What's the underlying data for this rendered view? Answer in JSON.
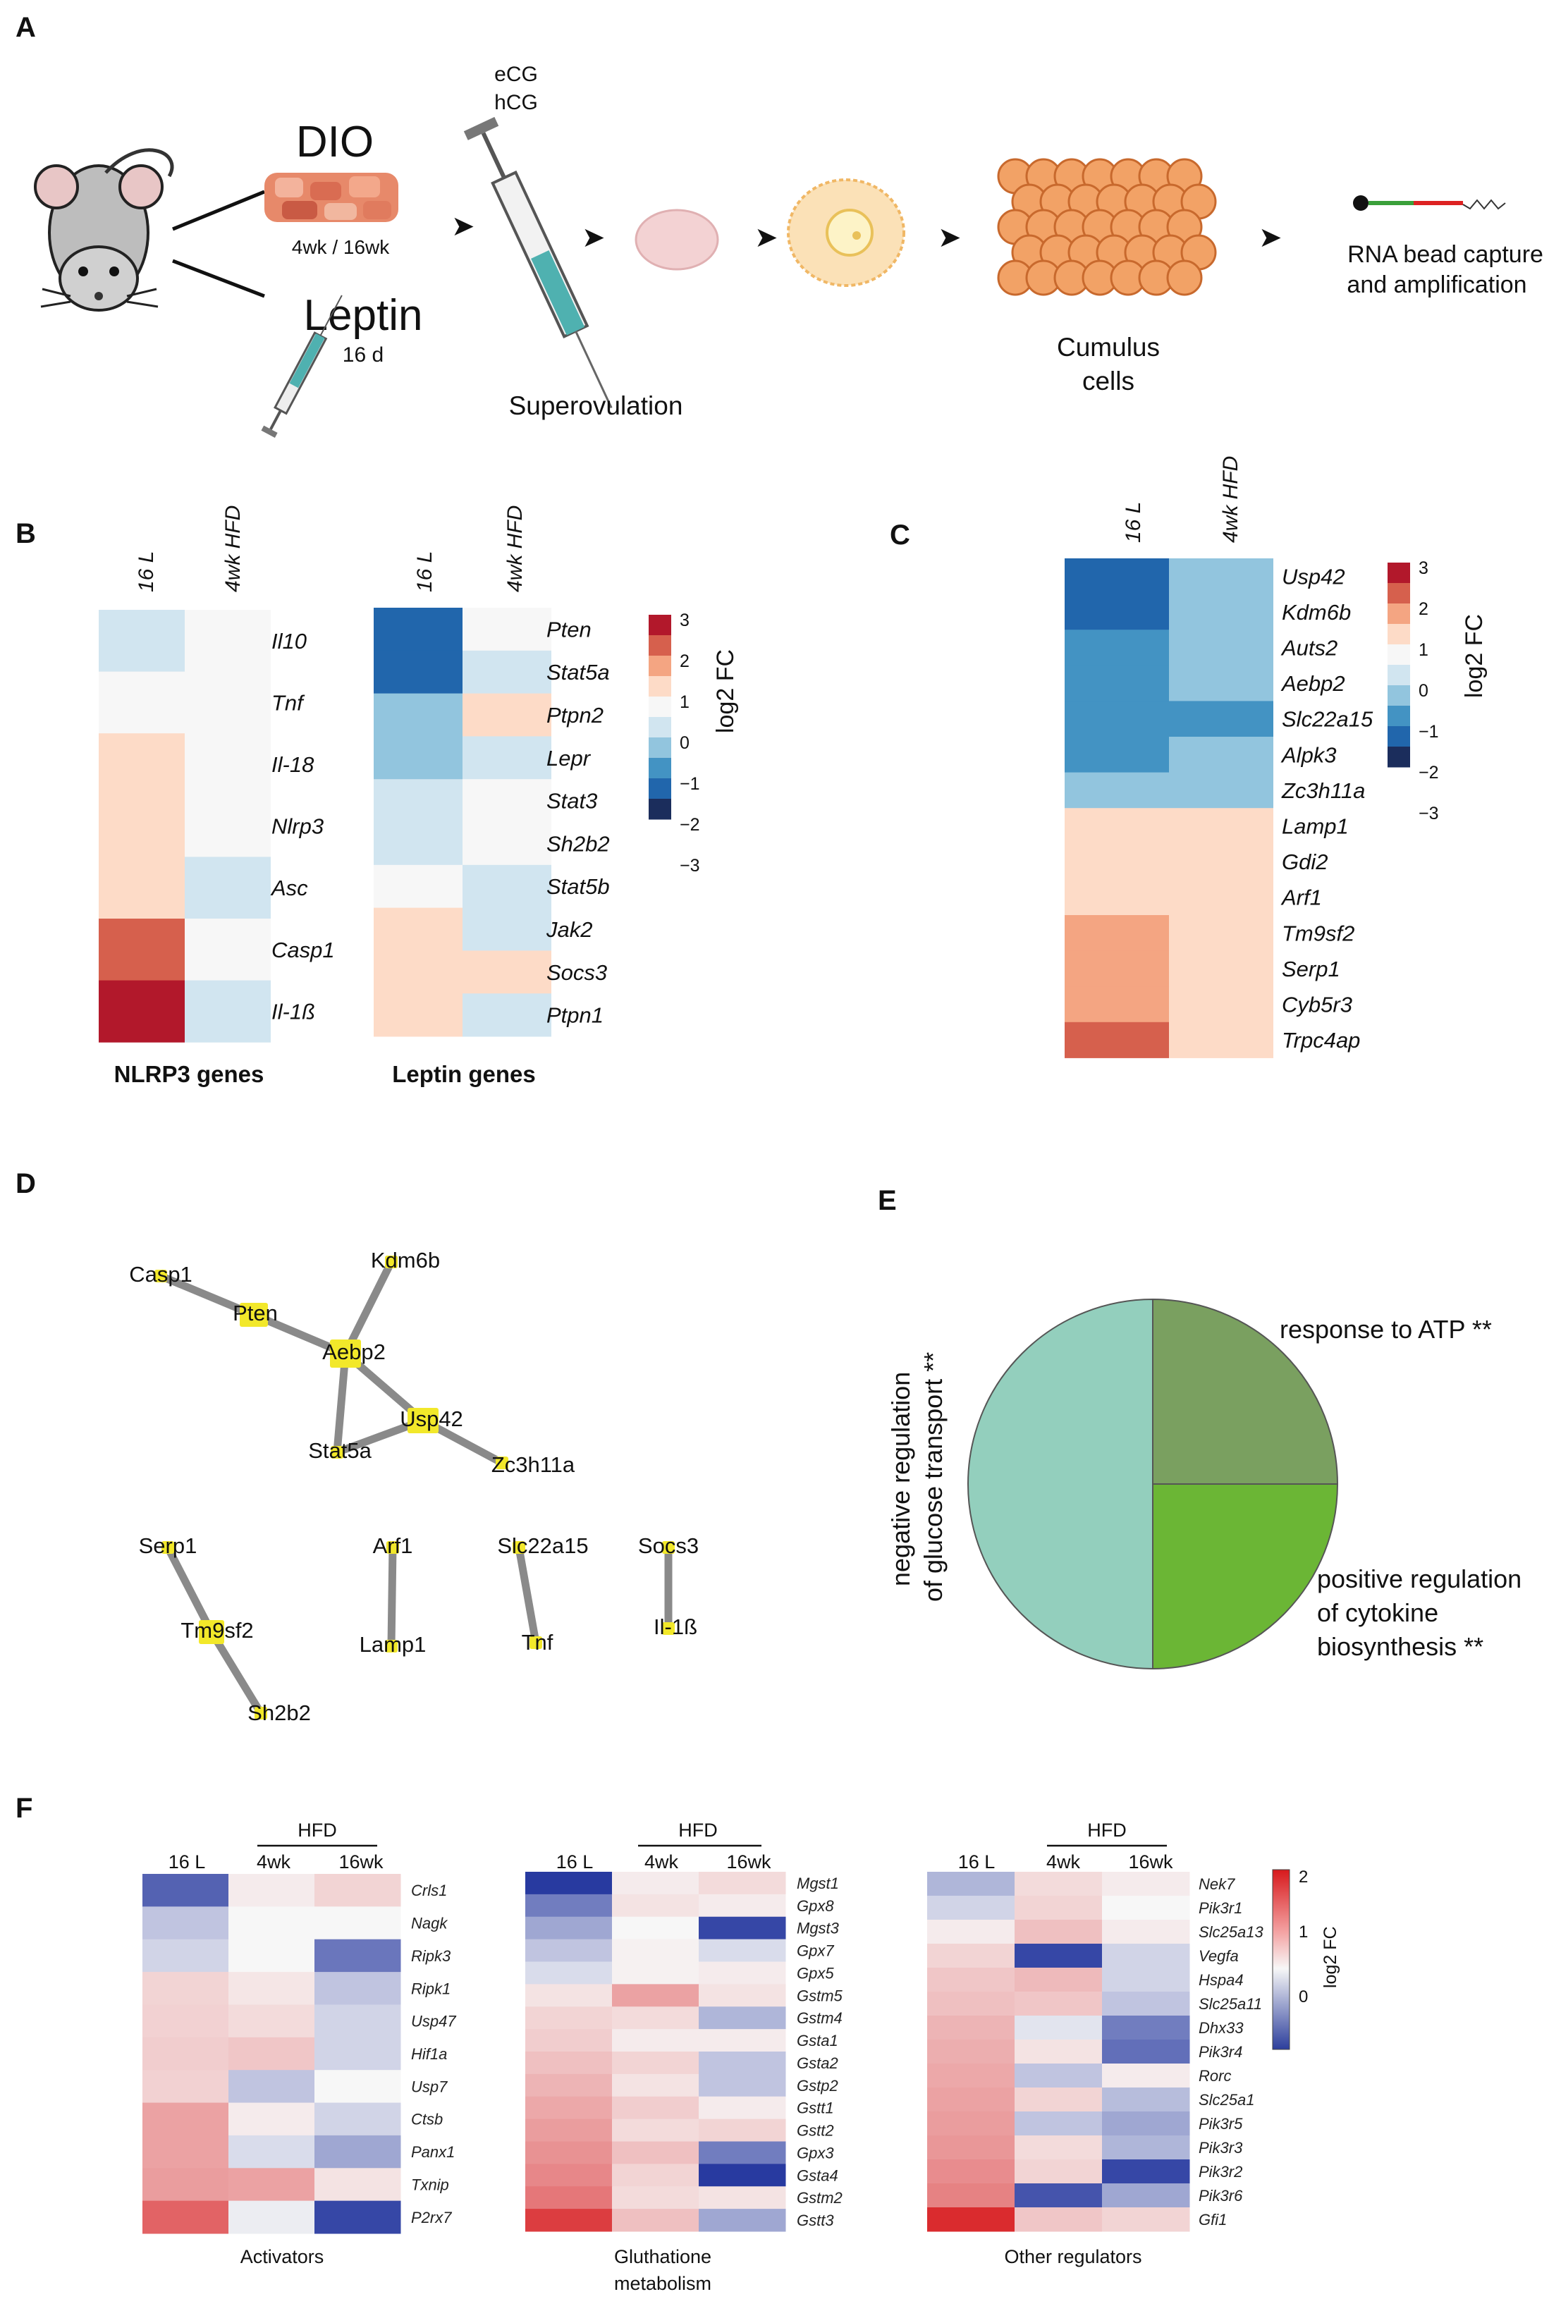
{
  "panels": {
    "A": "A",
    "B": "B",
    "C": "C",
    "D": "D",
    "E": "E",
    "F": "F"
  },
  "schematic": {
    "dio": "DIO",
    "dio_time": "4wk / 16wk",
    "leptin": "Leptin",
    "leptin_time": "16 d",
    "hormone1": "eCG",
    "hormone2": "hCG",
    "superovulation": "Superovulation",
    "cumulus1": "Cumulus",
    "cumulus2": "cells",
    "rna1": "RNA bead capture",
    "rna2": "and amplification"
  },
  "colors": {
    "c-3": "#1b2d5c",
    "c-2": "#2166ac",
    "c-1.5": "#4393c3",
    "c-1": "#92c5de",
    "c-0.5": "#d1e5f0",
    "c0": "#f7f7f7",
    "c0.5": "#fddbc7",
    "c1": "#f4a582",
    "c1.5": "#d6604d",
    "c2": "#b2182b"
  },
  "panelB": {
    "nlrp3": {
      "title": "NLRP3 genes",
      "columns": [
        "16 L",
        "4wk HFD"
      ],
      "rows": [
        {
          "gene": "Il10",
          "vals": [
            "c-0.5",
            "c0"
          ]
        },
        {
          "gene": "Tnf",
          "vals": [
            "c0",
            "c0"
          ]
        },
        {
          "gene": "Il-18",
          "vals": [
            "c0.5",
            "c0"
          ]
        },
        {
          "gene": "Nlrp3",
          "vals": [
            "c0.5",
            "c0"
          ]
        },
        {
          "gene": "Asc",
          "vals": [
            "c0.5",
            "c-0.5"
          ]
        },
        {
          "gene": "Casp1",
          "vals": [
            "c1.5",
            "c0"
          ]
        },
        {
          "gene": "Il-1ß",
          "vals": [
            "c2",
            "c-0.5"
          ]
        }
      ]
    },
    "leptin": {
      "title": "Leptin genes",
      "columns": [
        "16 L",
        "4wk HFD"
      ],
      "rows": [
        {
          "gene": "Pten",
          "vals": [
            "c-2",
            "c0"
          ]
        },
        {
          "gene": "Stat5a",
          "vals": [
            "c-2",
            "c-0.5"
          ]
        },
        {
          "gene": "Ptpn2",
          "vals": [
            "c-1",
            "c0.5"
          ]
        },
        {
          "gene": "Lepr",
          "vals": [
            "c-1",
            "c-0.5"
          ]
        },
        {
          "gene": "Stat3",
          "vals": [
            "c-0.5",
            "c0"
          ]
        },
        {
          "gene": "Sh2b2",
          "vals": [
            "c-0.5",
            "c0"
          ]
        },
        {
          "gene": "Stat5b",
          "vals": [
            "c0",
            "c-0.5"
          ]
        },
        {
          "gene": "Jak2",
          "vals": [
            "c0.5",
            "c-0.5"
          ]
        },
        {
          "gene": "Socs3",
          "vals": [
            "c0.5",
            "c0.5"
          ]
        },
        {
          "gene": "Ptpn1",
          "vals": [
            "c0.5",
            "c-0.5"
          ]
        }
      ]
    },
    "legend": {
      "title": "log2 FC",
      "ticks": [
        "3",
        "2",
        "1",
        "0",
        "−1",
        "−2",
        "−3"
      ]
    }
  },
  "panelC": {
    "columns": [
      "16 L",
      "4wk HFD"
    ],
    "rows": [
      {
        "gene": "Usp42",
        "vals": [
          "c-2",
          "c-1"
        ]
      },
      {
        "gene": "Kdm6b",
        "vals": [
          "c-2",
          "c-1"
        ]
      },
      {
        "gene": "Auts2",
        "vals": [
          "c-1.5",
          "c-1"
        ]
      },
      {
        "gene": "Aebp2",
        "vals": [
          "c-1.5",
          "c-1"
        ]
      },
      {
        "gene": "Slc22a15",
        "vals": [
          "c-1.5",
          "c-1.5"
        ]
      },
      {
        "gene": "Alpk3",
        "vals": [
          "c-1.5",
          "c-1"
        ]
      },
      {
        "gene": "Zc3h11a",
        "vals": [
          "c-1",
          "c-1"
        ]
      },
      {
        "gene": "Lamp1",
        "vals": [
          "c0.5",
          "c0.5"
        ]
      },
      {
        "gene": "Gdi2",
        "vals": [
          "c0.5",
          "c0.5"
        ]
      },
      {
        "gene": "Arf1",
        "vals": [
          "c0.5",
          "c0.5"
        ]
      },
      {
        "gene": "Tm9sf2",
        "vals": [
          "c1",
          "c0.5"
        ]
      },
      {
        "gene": "Serp1",
        "vals": [
          "c1",
          "c0.5"
        ]
      },
      {
        "gene": "Cyb5r3",
        "vals": [
          "c1",
          "c0.5"
        ]
      },
      {
        "gene": "Trpc4ap",
        "vals": [
          "c1.5",
          "c0.5"
        ]
      }
    ],
    "legend": {
      "title": "log2 FC",
      "ticks": [
        "3",
        "2",
        "1",
        "0",
        "−1",
        "−2",
        "−3"
      ]
    }
  },
  "panelD": {
    "nodes": [
      "Casp1",
      "Pten",
      "Kdm6b",
      "Aebp2",
      "Usp42",
      "Stat5a",
      "Zc3h11a",
      "Serp1",
      "Tm9sf2",
      "Sh2b2",
      "Arf1",
      "Lamp1",
      "Slc22a15",
      "Tnf",
      "Socs3",
      "Il-1ß"
    ],
    "edges": [
      [
        "Casp1",
        "Pten"
      ],
      [
        "Pten",
        "Aebp2"
      ],
      [
        "Kdm6b",
        "Aebp2"
      ],
      [
        "Aebp2",
        "Usp42"
      ],
      [
        "Aebp2",
        "Stat5a"
      ],
      [
        "Stat5a",
        "Usp42"
      ],
      [
        "Usp42",
        "Zc3h11a"
      ],
      [
        "Serp1",
        "Tm9sf2"
      ],
      [
        "Tm9sf2",
        "Sh2b2"
      ],
      [
        "Arf1",
        "Lamp1"
      ],
      [
        "Slc22a15",
        "Tnf"
      ],
      [
        "Socs3",
        "Il-1ß"
      ]
    ]
  },
  "chart_data": {
    "type": "pie",
    "labels": [
      "negative regulation of glucose transport **",
      "response to ATP **",
      "positive regulation of cytokine biosynthesis **"
    ],
    "values": [
      50,
      25,
      25
    ],
    "colors": [
      "#93cfbd",
      "#7aa060",
      "#6bb635"
    ],
    "label_lines": {
      "left": [
        "negative regulation",
        "of glucose transport **"
      ],
      "top_right": [
        "response to ATP **"
      ],
      "bottom_right": [
        "positive regulation",
        "of cytokine",
        "biosynthesis **"
      ]
    }
  },
  "panelF": {
    "hfd": "HFD",
    "legend": {
      "title": "log2 FC",
      "ticks": [
        "2",
        "1",
        "0"
      ]
    },
    "activators": {
      "title": "Activators",
      "columns": [
        "16 L",
        "4wk",
        "16wk"
      ],
      "rows": [
        {
          "gene": "Crls1",
          "vals": [
            -1.0,
            0.05,
            0.2
          ]
        },
        {
          "gene": "Nagk",
          "vals": [
            -0.3,
            0.0,
            0.0
          ]
        },
        {
          "gene": "Ripk3",
          "vals": [
            -0.2,
            0.0,
            -0.85
          ]
        },
        {
          "gene": "Ripk1",
          "vals": [
            0.2,
            0.08,
            -0.3
          ]
        },
        {
          "gene": "Usp47",
          "vals": [
            0.22,
            0.15,
            -0.2
          ]
        },
        {
          "gene": "Hif1a",
          "vals": [
            0.25,
            0.3,
            -0.2
          ]
        },
        {
          "gene": "Usp7",
          "vals": [
            0.22,
            -0.3,
            0.0
          ]
        },
        {
          "gene": "Ctsb",
          "vals": [
            0.6,
            0.05,
            -0.2
          ]
        },
        {
          "gene": "Panx1",
          "vals": [
            0.6,
            -0.15,
            -0.5
          ]
        },
        {
          "gene": "Txnip",
          "vals": [
            0.65,
            0.6,
            0.1
          ]
        },
        {
          "gene": "P2rx7",
          "vals": [
            1.2,
            -0.05,
            -1.2
          ]
        }
      ]
    },
    "glutathione": {
      "title": "Gluthatione",
      "title2": "metabolism",
      "columns": [
        "16 L",
        "4wk",
        "16wk"
      ],
      "rows": [
        {
          "gene": "Mgst1",
          "vals": [
            -1.5,
            0.05,
            0.15
          ]
        },
        {
          "gene": "Gpx8",
          "vals": [
            -0.8,
            0.1,
            0.05
          ]
        },
        {
          "gene": "Mgst3",
          "vals": [
            -0.5,
            0.0,
            -1.2
          ]
        },
        {
          "gene": "Gpx7",
          "vals": [
            -0.3,
            0.02,
            -0.15
          ]
        },
        {
          "gene": "Gpx5",
          "vals": [
            -0.15,
            0.02,
            0.05
          ]
        },
        {
          "gene": "Gstm5",
          "vals": [
            0.1,
            0.6,
            0.1
          ]
        },
        {
          "gene": "Gstm4",
          "vals": [
            0.2,
            0.15,
            -0.4
          ]
        },
        {
          "gene": "Gsta1",
          "vals": [
            0.25,
            0.05,
            0.05
          ]
        },
        {
          "gene": "Gsta2",
          "vals": [
            0.35,
            0.2,
            -0.3
          ]
        },
        {
          "gene": "Gstp2",
          "vals": [
            0.45,
            0.1,
            -0.3
          ]
        },
        {
          "gene": "Gstt1",
          "vals": [
            0.55,
            0.25,
            0.05
          ]
        },
        {
          "gene": "Gstt2",
          "vals": [
            0.65,
            0.15,
            0.2
          ]
        },
        {
          "gene": "Gpx3",
          "vals": [
            0.75,
            0.35,
            -0.8
          ]
        },
        {
          "gene": "Gsta4",
          "vals": [
            0.85,
            0.2,
            -1.3
          ]
        },
        {
          "gene": "Gstm2",
          "vals": [
            1.0,
            0.15,
            0.1
          ]
        },
        {
          "gene": "Gstt3",
          "vals": [
            1.6,
            0.35,
            -0.5
          ]
        }
      ]
    },
    "other": {
      "title": "Other regulators",
      "columns": [
        "16 L",
        "4wk",
        "16wk"
      ],
      "rows": [
        {
          "gene": "Nek7",
          "vals": [
            -0.4,
            0.15,
            0.05
          ]
        },
        {
          "gene": "Pik3r1",
          "vals": [
            -0.2,
            0.2,
            0.0
          ]
        },
        {
          "gene": "Slc25a13",
          "vals": [
            0.05,
            0.35,
            0.05
          ]
        },
        {
          "gene": "Vegfa",
          "vals": [
            0.2,
            -1.2,
            -0.2
          ]
        },
        {
          "gene": "Hspa4",
          "vals": [
            0.3,
            0.4,
            -0.2
          ]
        },
        {
          "gene": "Slc25a11",
          "vals": [
            0.35,
            0.3,
            -0.3
          ]
        },
        {
          "gene": "Dhx33",
          "vals": [
            0.45,
            -0.1,
            -0.8
          ]
        },
        {
          "gene": "Pik3r4",
          "vals": [
            0.5,
            0.1,
            -0.9
          ]
        },
        {
          "gene": "Rorc",
          "vals": [
            0.55,
            -0.3,
            0.05
          ]
        },
        {
          "gene": "Slc25a1",
          "vals": [
            0.6,
            0.2,
            -0.35
          ]
        },
        {
          "gene": "Pik3r5",
          "vals": [
            0.65,
            -0.3,
            -0.5
          ]
        },
        {
          "gene": "Pik3r3",
          "vals": [
            0.7,
            0.15,
            -0.4
          ]
        },
        {
          "gene": "Pik3r2",
          "vals": [
            0.8,
            0.2,
            -1.2
          ]
        },
        {
          "gene": "Pik3r6",
          "vals": [
            0.9,
            -1.1,
            -0.5
          ]
        },
        {
          "gene": "Gfi1",
          "vals": [
            1.8,
            0.3,
            0.2
          ]
        }
      ]
    }
  }
}
